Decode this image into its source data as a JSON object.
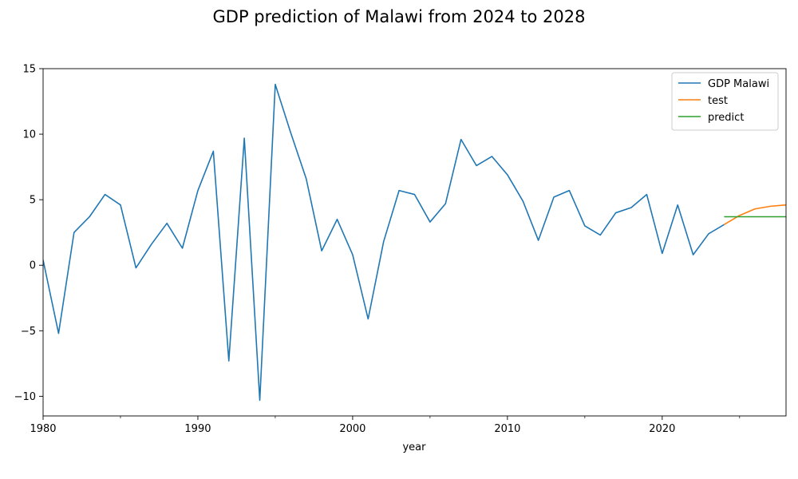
{
  "chart_data": {
    "type": "line",
    "title": "GDP prediction of Malawi from 2024 to 2028",
    "xlabel": "year",
    "ylabel": "",
    "xlim": [
      1980,
      2028
    ],
    "ylim": [
      -11.5,
      15
    ],
    "x_ticks": [
      1980,
      1990,
      2000,
      2010,
      2020
    ],
    "x_tick_labels": [
      "1980",
      "1990",
      "2000",
      "2010",
      "2020"
    ],
    "x_minor_ticks": [
      1985,
      1995,
      2005,
      2015,
      2025
    ],
    "y_ticks": [
      -10,
      -5,
      0,
      5,
      10,
      15
    ],
    "y_tick_labels": [
      "−10",
      "−5",
      "0",
      "5",
      "10",
      "15"
    ],
    "grid": false,
    "legend_position": "top-right",
    "series": [
      {
        "name": "GDP Malawi",
        "color": "#1f77b4",
        "x": [
          1980,
          1981,
          1982,
          1983,
          1984,
          1985,
          1986,
          1987,
          1988,
          1989,
          1990,
          1991,
          1992,
          1993,
          1994,
          1995,
          1996,
          1997,
          1998,
          1999,
          2000,
          2001,
          2002,
          2003,
          2004,
          2005,
          2006,
          2007,
          2008,
          2009,
          2010,
          2011,
          2012,
          2013,
          2014,
          2015,
          2016,
          2017,
          2018,
          2019,
          2020,
          2021,
          2022,
          2023,
          2024
        ],
        "values": [
          0.4,
          -5.2,
          2.5,
          3.7,
          5.4,
          4.6,
          -0.2,
          1.6,
          3.2,
          1.3,
          5.7,
          8.7,
          -7.3,
          9.7,
          -10.3,
          13.8,
          10.1,
          6.6,
          1.1,
          3.5,
          0.8,
          -4.1,
          1.8,
          5.7,
          5.4,
          3.3,
          4.7,
          9.6,
          7.6,
          8.3,
          6.9,
          4.9,
          1.9,
          5.2,
          5.7,
          3.0,
          2.3,
          4.0,
          4.4,
          5.4,
          0.9,
          4.6,
          0.8,
          2.4,
          3.1
        ]
      },
      {
        "name": "test",
        "color": "#ff7f0e",
        "x": [
          2024,
          2025,
          2026,
          2027,
          2028
        ],
        "values": [
          3.1,
          3.8,
          4.3,
          4.5,
          4.6
        ]
      },
      {
        "name": "predict",
        "color": "#2ca02c",
        "x": [
          2024,
          2025,
          2026,
          2027,
          2028
        ],
        "values": [
          3.7,
          3.7,
          3.7,
          3.7,
          3.7
        ]
      }
    ]
  }
}
